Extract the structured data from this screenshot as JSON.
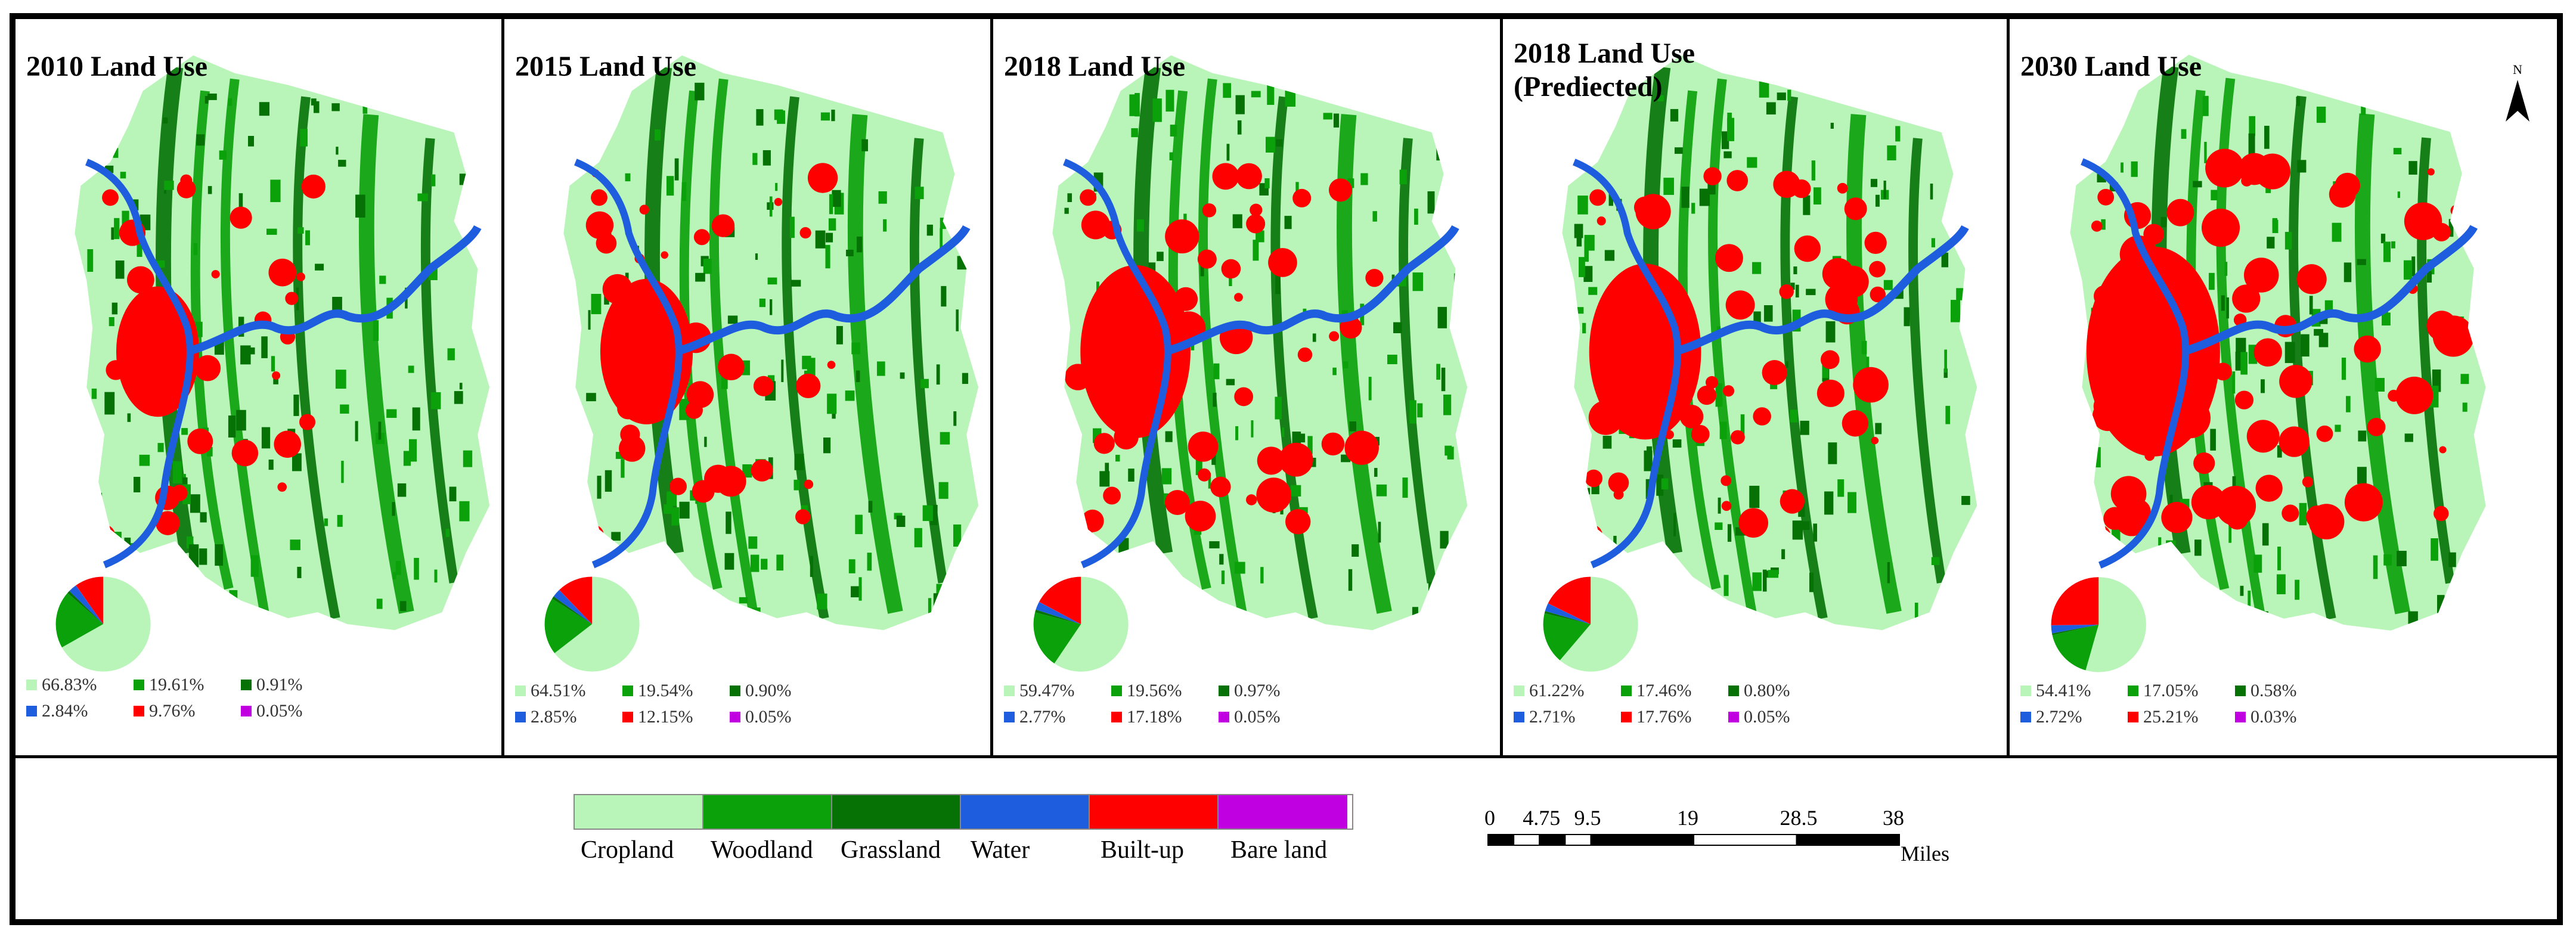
{
  "colors": {
    "cropland": "#b9f5b9",
    "woodland": "#0aa10a",
    "grassland": "#067206",
    "water": "#1f5ddf",
    "builtup": "#ff0000",
    "bareland": "#c000e0"
  },
  "panels": [
    {
      "title": "2010 Land Use",
      "pie": [
        66.83,
        19.61,
        0.91,
        2.84,
        9.76,
        0.05
      ],
      "labels": [
        "66.83%",
        "19.61%",
        "0.91%",
        "2.84%",
        "9.76%",
        "0.05%"
      ]
    },
    {
      "title": "2015 Land Use",
      "pie": [
        64.51,
        19.54,
        0.9,
        2.85,
        12.15,
        0.05
      ],
      "labels": [
        "64.51%",
        "19.54%",
        "0.90%",
        "2.85%",
        "12.15%",
        "0.05%"
      ]
    },
    {
      "title": "2018 Land Use",
      "pie": [
        59.47,
        19.56,
        0.97,
        2.77,
        17.18,
        0.05
      ],
      "labels": [
        "59.47%",
        "19.56%",
        "0.97%",
        "2.77%",
        "17.18%",
        "0.05%"
      ]
    },
    {
      "title": "2018 Land Use\n(Prediected)",
      "pie": [
        61.22,
        17.46,
        0.8,
        2.71,
        17.76,
        0.05
      ],
      "labels": [
        "61.22%",
        "17.46%",
        "0.80%",
        "2.71%",
        "17.76%",
        "0.05%"
      ]
    },
    {
      "title": "2030 Land Use",
      "pie": [
        54.41,
        17.05,
        0.58,
        2.72,
        25.21,
        0.03
      ],
      "labels": [
        "54.41%",
        "17.05%",
        "0.58%",
        "2.72%",
        "25.21%",
        "0.03%"
      ]
    }
  ],
  "north_label": "N",
  "legend": [
    {
      "key": "cropland",
      "label": "Cropland"
    },
    {
      "key": "woodland",
      "label": "Woodland"
    },
    {
      "key": "grassland",
      "label": "Grassland"
    },
    {
      "key": "water",
      "label": "Water"
    },
    {
      "key": "builtup",
      "label": "Built-up"
    },
    {
      "key": "bareland",
      "label": "Bare land"
    }
  ],
  "scalebar": {
    "ticks": [
      "0",
      "4.75",
      "9.5",
      "19",
      "28.5",
      "38"
    ],
    "unit": "Miles"
  }
}
